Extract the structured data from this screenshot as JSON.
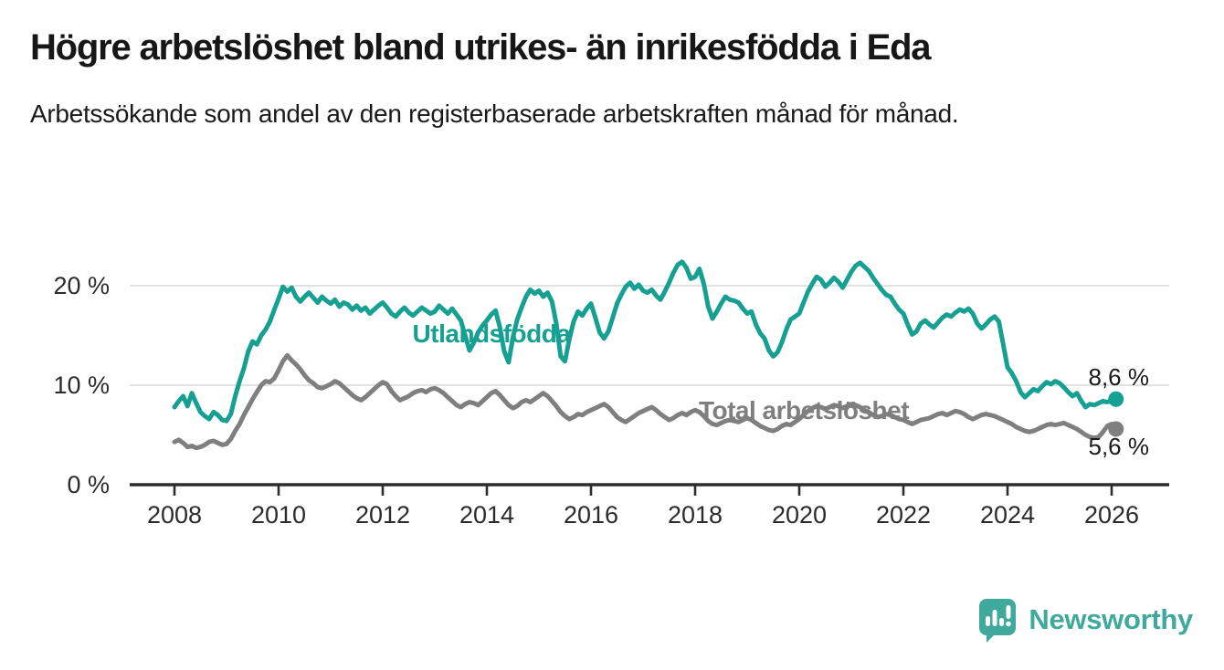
{
  "header": {
    "title": "Högre arbetslöshet bland utrikes- än inrikesfödda i Eda",
    "subtitle": "Arbetssökande som andel av den registerbaserade arbetskraften månad för månad."
  },
  "chart_data": {
    "type": "line",
    "unit": "%",
    "grid": "horizontal-on",
    "legend_position": "inline-labels",
    "x_start_year": 2008,
    "points_per_year": 12,
    "xlim": [
      2007.1,
      2027.1
    ],
    "ylim": [
      0,
      23
    ],
    "y_ticks": [
      {
        "value": 0,
        "label": "0 %"
      },
      {
        "value": 10,
        "label": "10 %"
      },
      {
        "value": 20,
        "label": "20 %"
      }
    ],
    "x_ticks": [
      {
        "value": 2008,
        "label": "2008"
      },
      {
        "value": 2010,
        "label": "2010"
      },
      {
        "value": 2012,
        "label": "2012"
      },
      {
        "value": 2014,
        "label": "2014"
      },
      {
        "value": 2016,
        "label": "2016"
      },
      {
        "value": 2018,
        "label": "2018"
      },
      {
        "value": 2020,
        "label": "2020"
      },
      {
        "value": 2022,
        "label": "2022"
      },
      {
        "value": 2024,
        "label": "2024"
      },
      {
        "value": 2026,
        "label": "2026"
      }
    ],
    "series": [
      {
        "name": "Utlandsfödda",
        "color": "#16A091",
        "end_label": "8,6 %",
        "end_value": 8.6,
        "values_by_year": [
          [
            7.8,
            8.4,
            8.9,
            7.9,
            9.2,
            8.2,
            7.3,
            6.9,
            6.6,
            7.3,
            7.0,
            6.5
          ],
          [
            6.4,
            7.1,
            8.9,
            10.4,
            11.7,
            13.4,
            14.4,
            14.1,
            15.0,
            15.6,
            16.4,
            17.6
          ],
          [
            18.7,
            19.9,
            19.4,
            19.8,
            18.9,
            18.4,
            18.9,
            19.3,
            18.8,
            18.3,
            18.9,
            18.5
          ],
          [
            18.2,
            18.6,
            17.9,
            18.3,
            18.1,
            17.6,
            18.0,
            17.5,
            17.8,
            17.2,
            17.6,
            18.0
          ],
          [
            18.3,
            17.8,
            17.2,
            16.9,
            17.4,
            17.8,
            17.3,
            17.0,
            17.4,
            17.8,
            17.5,
            17.2
          ],
          [
            17.4,
            18.0,
            17.6,
            17.2,
            17.7,
            17.1,
            16.5,
            15.0,
            13.5,
            14.3,
            15.3,
            16.0
          ],
          [
            16.5,
            17.1,
            17.5,
            15.8,
            13.4,
            12.3,
            14.8,
            16.6,
            17.8,
            18.9,
            19.6,
            19.2
          ],
          [
            19.5,
            18.9,
            19.3,
            18.4,
            16.2,
            12.9,
            12.4,
            14.6,
            16.4,
            17.4,
            17.0,
            17.7
          ],
          [
            18.2,
            16.8,
            15.3,
            14.7,
            15.4,
            16.8,
            18.2,
            19.1,
            19.9,
            20.3,
            19.7,
            20.1
          ],
          [
            19.5,
            19.3,
            19.6,
            19.0,
            18.6,
            19.4,
            20.3,
            21.3,
            22.1,
            22.4,
            21.8,
            20.7
          ],
          [
            20.9,
            21.7,
            20.2,
            17.9,
            16.7,
            17.4,
            18.2,
            18.9,
            18.6,
            18.5,
            18.3,
            17.7
          ],
          [
            17.2,
            17.4,
            16.1,
            15.2,
            14.7,
            13.5,
            12.9,
            13.3,
            14.3,
            15.6,
            16.6,
            16.9
          ],
          [
            17.2,
            18.3,
            19.4,
            20.2,
            20.9,
            20.6,
            19.9,
            20.3,
            20.8,
            20.4,
            19.8,
            20.6
          ],
          [
            21.4,
            22.0,
            22.3,
            21.9,
            21.5,
            20.8,
            20.2,
            19.6,
            19.1,
            18.9,
            18.2,
            17.6
          ],
          [
            17.2,
            16.1,
            15.1,
            15.4,
            16.2,
            16.5,
            16.1,
            15.8,
            16.3,
            16.8,
            17.1,
            16.9
          ],
          [
            17.3,
            17.6,
            17.4,
            17.7,
            17.2,
            16.2,
            15.7,
            16.1,
            16.6,
            16.9,
            16.4,
            14.1
          ],
          [
            11.8,
            11.2,
            10.4,
            9.3,
            8.8,
            9.2,
            9.6,
            9.4,
            9.9,
            10.3,
            10.1,
            10.4
          ],
          [
            10.2,
            9.8,
            9.3,
            8.9,
            9.2,
            8.4,
            7.8,
            8.1,
            8.0,
            8.2,
            8.4,
            8.3
          ],
          [
            8.5,
            8.6
          ]
        ]
      },
      {
        "name": "Total arbetslöshet",
        "color": "#7F7F7F",
        "end_label": "5,6 %",
        "end_value": 5.6,
        "values_by_year": [
          [
            4.3,
            4.5,
            4.2,
            3.8,
            3.9,
            3.7,
            3.8,
            4.0,
            4.3,
            4.4,
            4.2,
            4.0
          ],
          [
            4.1,
            4.6,
            5.4,
            6.1,
            7.0,
            7.8,
            8.6,
            9.3,
            10.0,
            10.4,
            10.3,
            10.7
          ],
          [
            11.5,
            12.4,
            13.0,
            12.5,
            12.1,
            11.6,
            11.0,
            10.5,
            10.2,
            9.8,
            9.7,
            9.9
          ],
          [
            10.1,
            10.4,
            10.2,
            9.8,
            9.4,
            9.0,
            8.7,
            8.5,
            8.8,
            9.2,
            9.6,
            10.0
          ],
          [
            10.3,
            10.1,
            9.4,
            8.9,
            8.5,
            8.7,
            8.9,
            9.2,
            9.4,
            9.5,
            9.3,
            9.6
          ],
          [
            9.7,
            9.5,
            9.2,
            8.8,
            8.4,
            8.0,
            7.8,
            8.1,
            8.3,
            8.2,
            8.0,
            8.4
          ],
          [
            8.8,
            9.2,
            9.4,
            9.0,
            8.5,
            8.0,
            7.7,
            7.9,
            8.3,
            8.5,
            8.3,
            8.6
          ],
          [
            8.9,
            9.2,
            8.9,
            8.4,
            7.9,
            7.3,
            6.9,
            6.6,
            6.8,
            7.1,
            7.0,
            7.3
          ],
          [
            7.5,
            7.7,
            7.9,
            8.1,
            7.8,
            7.3,
            6.8,
            6.5,
            6.3,
            6.6,
            6.9,
            7.2
          ],
          [
            7.4,
            7.6,
            7.8,
            7.5,
            7.1,
            6.8,
            6.5,
            6.7,
            7.0,
            7.2,
            7.0,
            7.3
          ],
          [
            7.5,
            7.3,
            6.9,
            6.4,
            6.1,
            6.0,
            6.2,
            6.4,
            6.5,
            6.4,
            6.3,
            6.5
          ],
          [
            6.7,
            6.5,
            6.2,
            5.9,
            5.7,
            5.5,
            5.4,
            5.6,
            5.9,
            6.1,
            6.0,
            6.3
          ],
          [
            6.6,
            7.0,
            7.4,
            7.7,
            7.9,
            7.8,
            7.6,
            7.8,
            8.0,
            7.9,
            7.7,
            7.9
          ],
          [
            8.1,
            8.0,
            7.8,
            7.5,
            7.3,
            7.0,
            6.8,
            6.9,
            7.1,
            7.0,
            6.8,
            6.6
          ],
          [
            6.5,
            6.3,
            6.1,
            6.3,
            6.5,
            6.6,
            6.7,
            6.9,
            7.1,
            7.2,
            7.0,
            7.2
          ],
          [
            7.4,
            7.3,
            7.1,
            6.8,
            6.6,
            6.8,
            7.0,
            7.1,
            7.0,
            6.9,
            6.7,
            6.5
          ],
          [
            6.3,
            6.1,
            5.8,
            5.6,
            5.4,
            5.3,
            5.4,
            5.6,
            5.8,
            6.0,
            6.1,
            6.0
          ],
          [
            6.1,
            6.2,
            6.0,
            5.8,
            5.6,
            5.3,
            5.0,
            4.8,
            4.7,
            4.8,
            5.3,
            5.9
          ],
          [
            6.1,
            5.6
          ]
        ]
      }
    ],
    "colors": {
      "grid": "#D9D9D9",
      "axis": "#2D2D2D",
      "tick_text": "#2B2B2B",
      "annotation_text": "#1A1A1A"
    }
  },
  "branding": {
    "logo_text": "Newsworthy",
    "logo_color": "#3FA99C"
  }
}
